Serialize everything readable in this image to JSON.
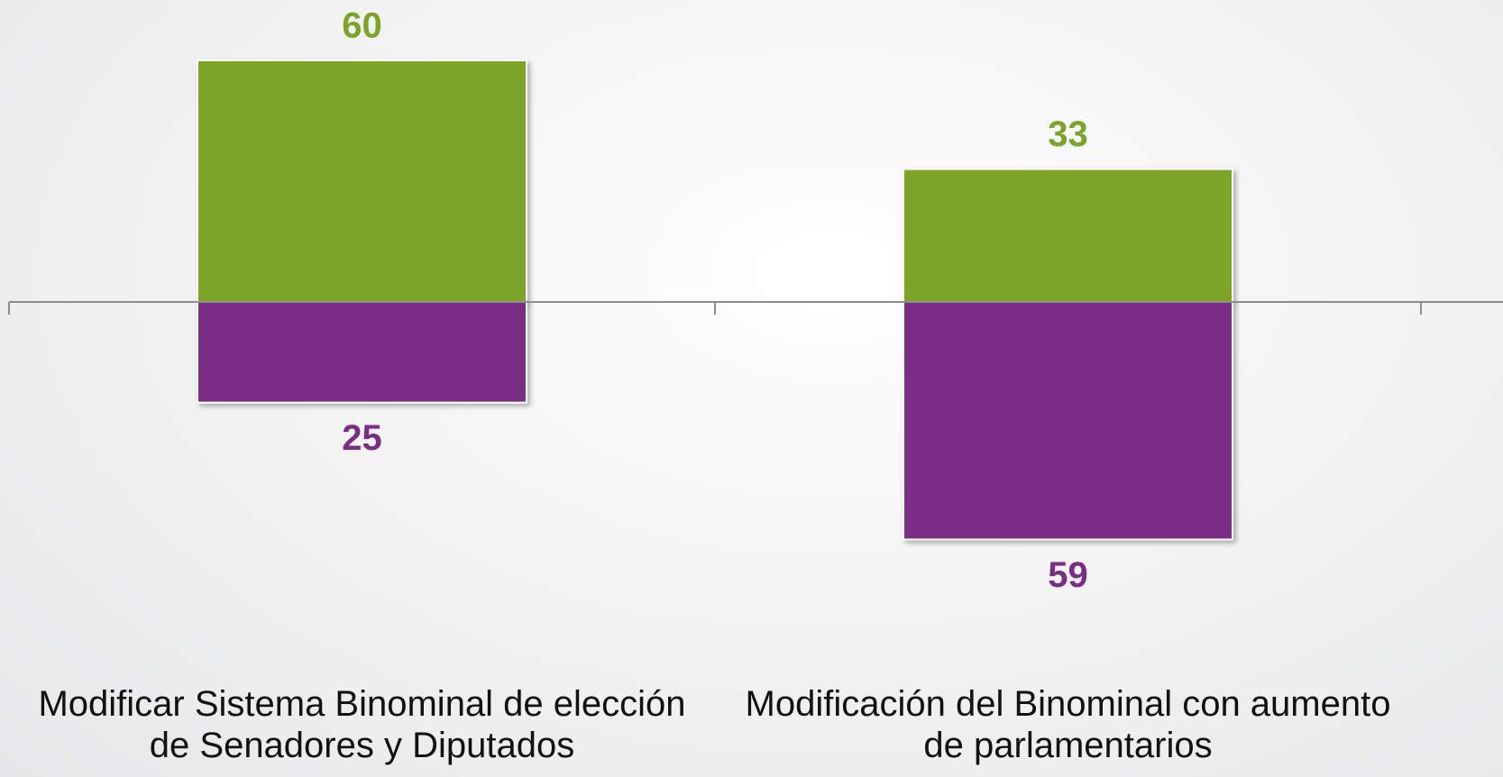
{
  "chart_data": {
    "type": "bar",
    "categories": [
      "Modificar Sistema Binominal de elección de Senadores y Diputados",
      "Modificación del Binominal con aumento de parlamentarios"
    ],
    "series": [
      {
        "color": "#7ba428",
        "values": [
          60,
          33
        ]
      },
      {
        "color": "#7b2d86",
        "values": [
          -25,
          -59
        ],
        "value_labels": [
          "25",
          "59"
        ]
      }
    ],
    "ylim": [
      -118,
      75
    ]
  }
}
